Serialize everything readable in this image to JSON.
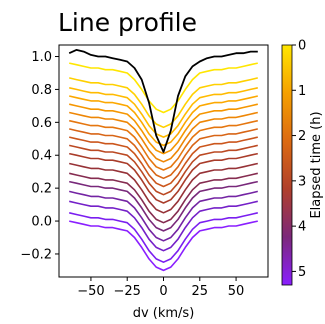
{
  "chart_data": {
    "type": "line",
    "title": "Line profile",
    "xlabel": "dv (km/s)",
    "ylabel": "",
    "xlim": [
      -72,
      72
    ],
    "ylim": [
      -0.34,
      1.07
    ],
    "xticks": [
      -50,
      -25,
      0,
      25,
      50
    ],
    "xtick_labels": [
      "−50",
      "−25",
      "0",
      "25",
      "50"
    ],
    "yticks": [
      -0.2,
      0.0,
      0.2,
      0.4,
      0.6,
      0.8,
      1.0
    ],
    "ytick_labels": [
      "−0.2",
      "0.0",
      "0.2",
      "0.4",
      "0.6",
      "0.8",
      "1.0"
    ],
    "grid": false,
    "legend": "none",
    "x": [
      -65,
      -60,
      -55,
      -50,
      -45,
      -40,
      -35,
      -30,
      -25,
      -20,
      -15,
      -10,
      -5,
      0,
      5,
      10,
      15,
      20,
      25,
      30,
      35,
      40,
      45,
      50,
      55,
      60,
      65
    ],
    "observed": {
      "name": "observed",
      "color": "#000000",
      "values": [
        1.02,
        1.04,
        1.03,
        1.01,
        1.0,
        1.0,
        0.99,
        0.98,
        0.97,
        0.93,
        0.86,
        0.72,
        0.52,
        0.42,
        0.55,
        0.76,
        0.88,
        0.94,
        0.97,
        0.99,
        1.0,
        1.0,
        1.01,
        1.02,
        1.02,
        1.03,
        1.03
      ]
    },
    "model_series": [
      {
        "elapsed_h": 0.15,
        "color": "#ffe600",
        "values": [
          0.96,
          0.95,
          0.94,
          0.93,
          0.93,
          0.92,
          0.92,
          0.91,
          0.9,
          0.86,
          0.8,
          0.73,
          0.68,
          0.66,
          0.68,
          0.73,
          0.8,
          0.86,
          0.9,
          0.91,
          0.92,
          0.92,
          0.93,
          0.93,
          0.94,
          0.95,
          0.96
        ]
      },
      {
        "elapsed_h": 0.45,
        "color": "#ffd000",
        "values": [
          0.87,
          0.86,
          0.85,
          0.84,
          0.84,
          0.83,
          0.83,
          0.82,
          0.81,
          0.77,
          0.71,
          0.64,
          0.59,
          0.57,
          0.59,
          0.64,
          0.71,
          0.77,
          0.81,
          0.82,
          0.83,
          0.83,
          0.84,
          0.84,
          0.85,
          0.86,
          0.87
        ]
      },
      {
        "elapsed_h": 0.75,
        "color": "#ffbb00",
        "values": [
          0.81,
          0.8,
          0.79,
          0.78,
          0.78,
          0.77,
          0.77,
          0.76,
          0.75,
          0.71,
          0.65,
          0.58,
          0.53,
          0.51,
          0.53,
          0.58,
          0.65,
          0.71,
          0.75,
          0.76,
          0.77,
          0.77,
          0.78,
          0.78,
          0.79,
          0.8,
          0.81
        ]
      },
      {
        "elapsed_h": 1.05,
        "color": "#fca800",
        "values": [
          0.76,
          0.75,
          0.74,
          0.73,
          0.73,
          0.72,
          0.72,
          0.71,
          0.7,
          0.66,
          0.6,
          0.53,
          0.48,
          0.46,
          0.48,
          0.53,
          0.6,
          0.66,
          0.7,
          0.71,
          0.72,
          0.72,
          0.73,
          0.73,
          0.74,
          0.75,
          0.76
        ]
      },
      {
        "elapsed_h": 1.35,
        "color": "#f59600",
        "values": [
          0.71,
          0.7,
          0.69,
          0.68,
          0.68,
          0.67,
          0.67,
          0.66,
          0.65,
          0.61,
          0.55,
          0.48,
          0.43,
          0.41,
          0.43,
          0.48,
          0.55,
          0.61,
          0.65,
          0.66,
          0.67,
          0.67,
          0.68,
          0.68,
          0.69,
          0.7,
          0.71
        ]
      },
      {
        "elapsed_h": 1.65,
        "color": "#ee8605",
        "values": [
          0.66,
          0.65,
          0.64,
          0.63,
          0.63,
          0.62,
          0.62,
          0.61,
          0.6,
          0.56,
          0.5,
          0.43,
          0.38,
          0.36,
          0.38,
          0.43,
          0.5,
          0.56,
          0.6,
          0.61,
          0.62,
          0.62,
          0.63,
          0.63,
          0.64,
          0.65,
          0.66
        ]
      },
      {
        "elapsed_h": 1.95,
        "color": "#e5760f",
        "values": [
          0.61,
          0.6,
          0.59,
          0.58,
          0.58,
          0.57,
          0.57,
          0.56,
          0.55,
          0.51,
          0.45,
          0.38,
          0.33,
          0.31,
          0.33,
          0.38,
          0.45,
          0.51,
          0.55,
          0.56,
          0.57,
          0.57,
          0.58,
          0.58,
          0.59,
          0.6,
          0.61
        ]
      },
      {
        "elapsed_h": 2.25,
        "color": "#d86516",
        "values": [
          0.56,
          0.55,
          0.54,
          0.53,
          0.53,
          0.52,
          0.52,
          0.51,
          0.5,
          0.46,
          0.4,
          0.33,
          0.28,
          0.26,
          0.28,
          0.33,
          0.4,
          0.46,
          0.5,
          0.51,
          0.52,
          0.52,
          0.53,
          0.53,
          0.54,
          0.55,
          0.56
        ]
      },
      {
        "elapsed_h": 2.55,
        "color": "#cb561c",
        "values": [
          0.51,
          0.5,
          0.49,
          0.48,
          0.48,
          0.47,
          0.47,
          0.46,
          0.45,
          0.41,
          0.35,
          0.28,
          0.23,
          0.21,
          0.23,
          0.28,
          0.35,
          0.41,
          0.45,
          0.46,
          0.47,
          0.47,
          0.48,
          0.48,
          0.49,
          0.5,
          0.51
        ]
      },
      {
        "elapsed_h": 2.85,
        "color": "#bb4922",
        "values": [
          0.46,
          0.45,
          0.44,
          0.43,
          0.43,
          0.42,
          0.42,
          0.41,
          0.4,
          0.36,
          0.3,
          0.23,
          0.18,
          0.16,
          0.18,
          0.23,
          0.3,
          0.36,
          0.4,
          0.41,
          0.42,
          0.42,
          0.43,
          0.43,
          0.44,
          0.45,
          0.46
        ]
      },
      {
        "elapsed_h": 3.15,
        "color": "#a93c2a",
        "values": [
          0.41,
          0.4,
          0.39,
          0.38,
          0.38,
          0.37,
          0.37,
          0.36,
          0.35,
          0.31,
          0.25,
          0.18,
          0.13,
          0.11,
          0.13,
          0.18,
          0.25,
          0.31,
          0.35,
          0.36,
          0.37,
          0.37,
          0.38,
          0.38,
          0.39,
          0.4,
          0.41
        ]
      },
      {
        "elapsed_h": 3.45,
        "color": "#963237",
        "values": [
          0.35,
          0.34,
          0.33,
          0.32,
          0.32,
          0.31,
          0.31,
          0.3,
          0.29,
          0.25,
          0.19,
          0.12,
          0.07,
          0.05,
          0.07,
          0.12,
          0.19,
          0.25,
          0.29,
          0.3,
          0.31,
          0.31,
          0.32,
          0.32,
          0.33,
          0.34,
          0.35
        ]
      },
      {
        "elapsed_h": 3.75,
        "color": "#852c50",
        "values": [
          0.29,
          0.28,
          0.27,
          0.26,
          0.26,
          0.25,
          0.25,
          0.24,
          0.23,
          0.19,
          0.13,
          0.06,
          0.01,
          -0.01,
          0.01,
          0.06,
          0.13,
          0.19,
          0.23,
          0.24,
          0.25,
          0.25,
          0.26,
          0.26,
          0.27,
          0.28,
          0.29
        ]
      },
      {
        "elapsed_h": 4.05,
        "color": "#78287a",
        "values": [
          0.24,
          0.23,
          0.22,
          0.21,
          0.21,
          0.2,
          0.2,
          0.19,
          0.18,
          0.14,
          0.08,
          0.01,
          -0.04,
          -0.06,
          -0.04,
          0.01,
          0.08,
          0.14,
          0.18,
          0.19,
          0.2,
          0.2,
          0.21,
          0.21,
          0.22,
          0.23,
          0.24
        ]
      },
      {
        "elapsed_h": 4.35,
        "color": "#7324a3",
        "values": [
          0.18,
          0.17,
          0.16,
          0.15,
          0.15,
          0.14,
          0.14,
          0.13,
          0.12,
          0.08,
          0.02,
          -0.05,
          -0.1,
          -0.12,
          -0.1,
          -0.05,
          0.02,
          0.08,
          0.12,
          0.13,
          0.14,
          0.14,
          0.15,
          0.15,
          0.16,
          0.17,
          0.18
        ]
      },
      {
        "elapsed_h": 4.65,
        "color": "#7420c8",
        "values": [
          0.12,
          0.11,
          0.1,
          0.09,
          0.09,
          0.08,
          0.08,
          0.07,
          0.06,
          0.02,
          -0.04,
          -0.11,
          -0.16,
          -0.18,
          -0.16,
          -0.11,
          -0.04,
          0.02,
          0.06,
          0.07,
          0.08,
          0.08,
          0.09,
          0.09,
          0.1,
          0.11,
          0.12
        ]
      },
      {
        "elapsed_h": 4.95,
        "color": "#7a1ef0",
        "values": [
          0.05,
          0.04,
          0.03,
          0.02,
          0.02,
          0.01,
          0.01,
          0.0,
          -0.01,
          -0.05,
          -0.11,
          -0.18,
          -0.23,
          -0.25,
          -0.23,
          -0.18,
          -0.11,
          -0.05,
          -0.01,
          0.0,
          0.01,
          0.01,
          0.02,
          0.02,
          0.03,
          0.04,
          0.05
        ]
      },
      {
        "elapsed_h": 5.2,
        "color": "#8a1fff",
        "values": [
          0.0,
          -0.01,
          -0.02,
          -0.03,
          -0.03,
          -0.04,
          -0.04,
          -0.05,
          -0.06,
          -0.1,
          -0.16,
          -0.23,
          -0.28,
          -0.3,
          -0.28,
          -0.23,
          -0.16,
          -0.1,
          -0.06,
          -0.05,
          -0.04,
          -0.04,
          -0.03,
          -0.03,
          -0.02,
          -0.01,
          0.0
        ]
      }
    ],
    "colorbar": {
      "label": "Elapsed time (h)",
      "range": [
        0,
        5.3
      ],
      "ticks": [
        0,
        1,
        2,
        3,
        4,
        5
      ],
      "tick_labels": [
        "0",
        "1",
        "2",
        "3",
        "4",
        "5"
      ],
      "colors": [
        "#ffe600",
        "#f5a000",
        "#dc6a12",
        "#b0402c",
        "#7c287a",
        "#8a1fff"
      ]
    }
  }
}
